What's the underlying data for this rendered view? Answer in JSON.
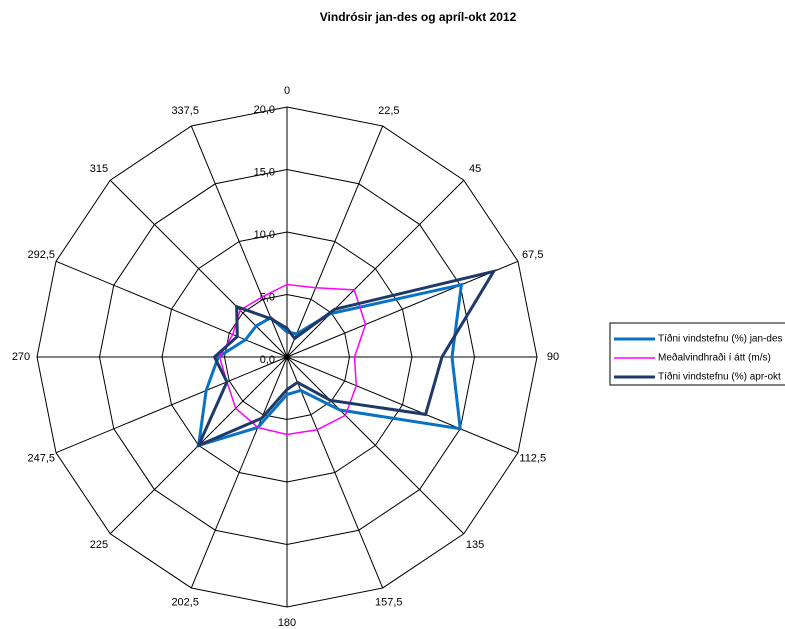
{
  "chart_data": {
    "type": "radar",
    "title": "Vindrósir jan-des og apríl-okt 2012",
    "categories": [
      "0",
      "22,5",
      "45",
      "67,5",
      "90",
      "112,5",
      "135",
      "157,5",
      "180",
      "202,5",
      "225",
      "247,5",
      "270",
      "292,5",
      "315",
      "337,5"
    ],
    "ylim": [
      0,
      20
    ],
    "yticks": [
      {
        "value": 0,
        "label": "0,0"
      },
      {
        "value": 5,
        "label": "5,0"
      },
      {
        "value": 10,
        "label": "10,0"
      },
      {
        "value": 15,
        "label": "15,0"
      },
      {
        "value": 20,
        "label": "20,0"
      }
    ],
    "series": [
      {
        "name": "Tíðni vindstefnu (%) jan-des",
        "color": "#0a72c2",
        "values": [
          2.0,
          2.0,
          4.9,
          15.1,
          13.2,
          15.0,
          6.0,
          2.9,
          3.0,
          6.1,
          10.0,
          7.0,
          5.5,
          3.6,
          3.5,
          3.4
        ]
      },
      {
        "name": "Meðalvindhraði í átt (m/s)",
        "color": "#ff00ff",
        "values": [
          5.8,
          6.0,
          7.6,
          6.8,
          5.4,
          6.0,
          6.6,
          6.3,
          6.2,
          6.1,
          5.8,
          5.2,
          5.4,
          4.7,
          5.3,
          5.2
        ]
      },
      {
        "name": "Tíðni vindstefnu (%) apr-okt",
        "color": "#1f3a68",
        "values": [
          2.3,
          1.6,
          5.4,
          17.9,
          12.4,
          12.0,
          4.9,
          2.2,
          2.6,
          5.3,
          10.0,
          5.2,
          5.8,
          4.3,
          5.7,
          3.3
        ]
      }
    ]
  }
}
